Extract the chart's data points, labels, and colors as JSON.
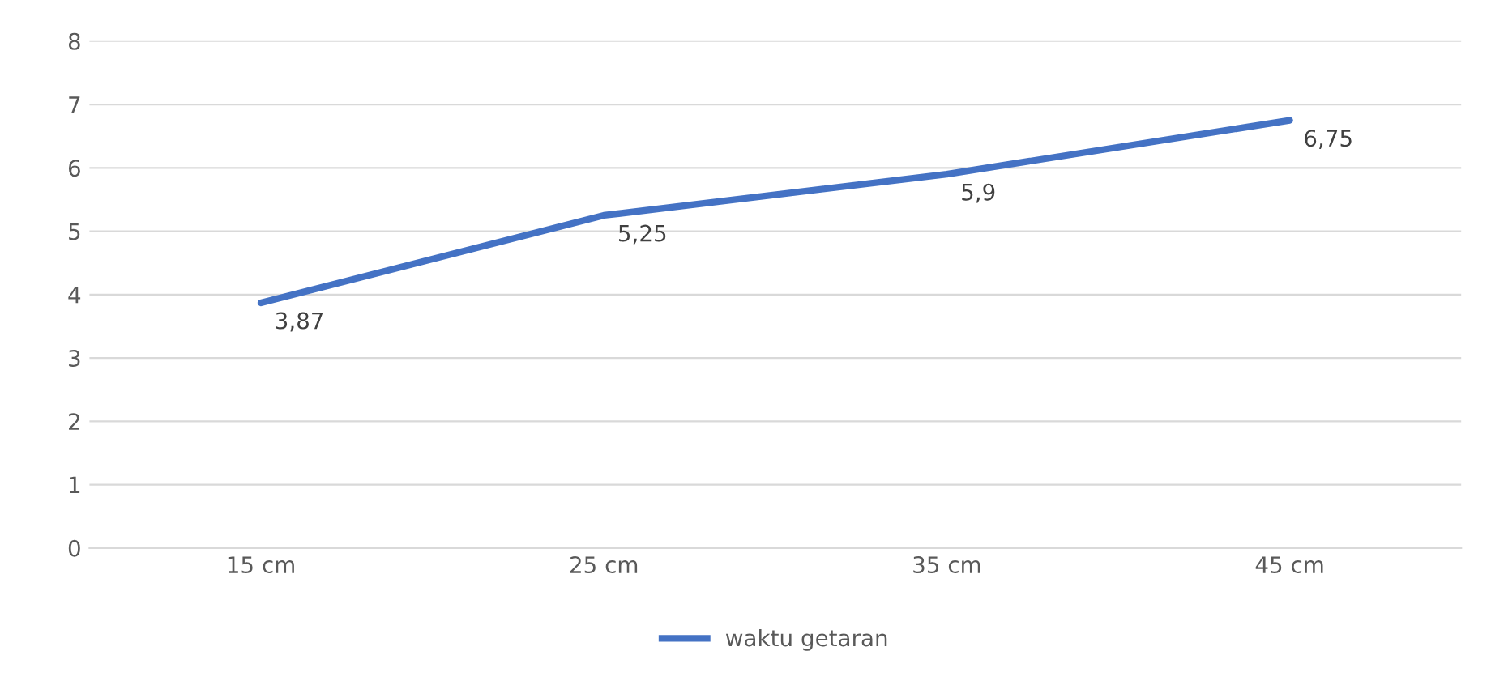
{
  "chart_data": {
    "type": "line",
    "categories": [
      "15 cm",
      "25 cm",
      "35 cm",
      "45 cm"
    ],
    "series": [
      {
        "name": "waktu getaran",
        "color": "#4472c4",
        "values": [
          3.87,
          5.25,
          5.9,
          6.75
        ]
      }
    ],
    "ylim": [
      0,
      8
    ],
    "yticks": [
      0,
      1,
      2,
      3,
      4,
      5,
      6,
      7,
      8
    ],
    "grid": "y",
    "legend": "bottom",
    "marker": "none",
    "line_style": "solid",
    "value_labels": [
      "3,87",
      "5,25",
      "5,9",
      "6,75"
    ]
  }
}
